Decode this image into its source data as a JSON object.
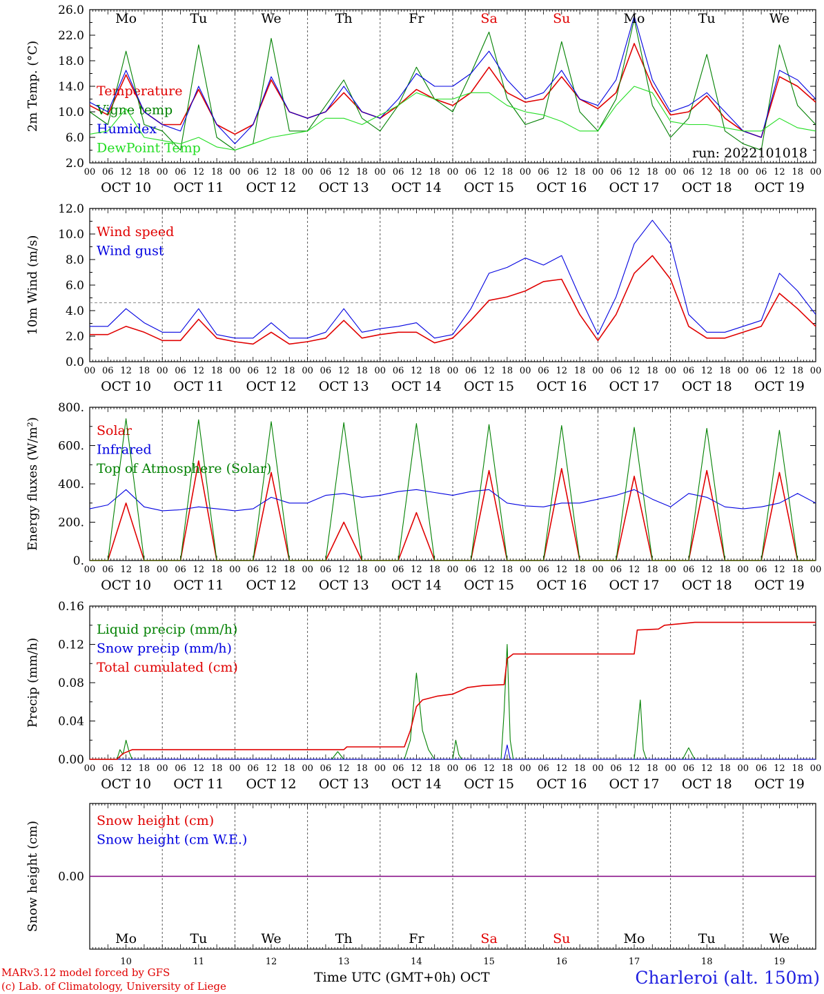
{
  "colors": {
    "red": "#e00000",
    "blue": "#0000e0",
    "green": "#008000",
    "lightgreen": "#22dd22",
    "purple": "#800080",
    "grid": "#555555",
    "weekend": "#e00000"
  },
  "days": [
    "Mo",
    "Tu",
    "We",
    "Th",
    "Fr",
    "Sa",
    "Su",
    "Mo",
    "Tu",
    "We"
  ],
  "weekend_days": [
    5,
    6
  ],
  "dates": [
    "OCT 10",
    "OCT 11",
    "OCT 12",
    "OCT 13",
    "OCT 14",
    "OCT 15",
    "OCT 16",
    "OCT 17",
    "OCT 18",
    "OCT 19"
  ],
  "date_numbers": [
    "10",
    "11",
    "12",
    "13",
    "14",
    "15",
    "16",
    "17",
    "18",
    "19"
  ],
  "hour_ticks": [
    "00",
    "06",
    "12",
    "18"
  ],
  "hour_end": "00",
  "footer": {
    "credit1": "MARv3.12 model forced by GFS",
    "credit2": "(c) Lab. of Climatology, University of Liege",
    "xtitle": "Time UTC (GMT+0h) OCT",
    "station": "Charleroi (alt. 150m)"
  },
  "chart_data": [
    {
      "type": "line",
      "ylabel": "2m Temp. (°C)",
      "ylim": [
        2,
        26
      ],
      "yticks": [
        "2.0",
        "6.0",
        "10.0",
        "14.0",
        "18.0",
        "22.0",
        "26.0"
      ],
      "annotation": "run: 2022101018",
      "x_hours": [
        0,
        6,
        12,
        18,
        24,
        30,
        36,
        42,
        48,
        54,
        60,
        66,
        72,
        78,
        84,
        90,
        96,
        102,
        108,
        114,
        120,
        126,
        132,
        138,
        144,
        150,
        156,
        162,
        168,
        174,
        180,
        186,
        192,
        198,
        204,
        210,
        216,
        222,
        228,
        234,
        240
      ],
      "series": [
        {
          "name": "Temperature",
          "color": "red",
          "values": [
            11,
            9.5,
            15.8,
            10,
            8,
            8,
            13.5,
            8,
            6.5,
            8,
            15,
            10,
            9,
            10,
            13,
            10,
            9,
            11,
            13.5,
            12,
            11,
            13,
            17,
            13,
            11.5,
            12,
            15.5,
            12,
            10.5,
            13,
            20.7,
            14,
            9.5,
            10,
            12.5,
            9,
            7,
            6,
            15.5,
            14,
            11.5
          ]
        },
        {
          "name": "Vigne temp",
          "color": "green",
          "values": [
            10,
            8,
            19.5,
            8,
            7,
            4,
            20.5,
            6,
            4,
            5,
            21.5,
            7,
            7,
            11,
            15,
            9,
            7,
            11,
            17,
            12,
            10,
            16,
            22.5,
            12,
            8,
            9,
            21,
            10,
            7,
            12,
            24.5,
            11,
            6,
            9,
            19,
            7,
            5,
            4,
            20.5,
            11,
            8
          ]
        },
        {
          "name": "Humidex",
          "color": "blue",
          "values": [
            11.5,
            10,
            16.5,
            10,
            8,
            7,
            14,
            8,
            5,
            8,
            15.5,
            10,
            9,
            10,
            14,
            10,
            9,
            12,
            16,
            14,
            14,
            16,
            19.5,
            15,
            12,
            13,
            16.5,
            12,
            11,
            15,
            25,
            15,
            10,
            11,
            13,
            10,
            7,
            6,
            16.5,
            15,
            12
          ]
        },
        {
          "name": "DewPoint Temp",
          "color": "lightgreen",
          "values": [
            6.5,
            7,
            10.5,
            6,
            5.5,
            5,
            6,
            4.5,
            4,
            5,
            6,
            6.5,
            7,
            9,
            9,
            8,
            9.5,
            11,
            13,
            12,
            12,
            13,
            13,
            11,
            10,
            9.5,
            8.5,
            7,
            7,
            11,
            14,
            13,
            8.5,
            8,
            8,
            7.5,
            7,
            7,
            9,
            7.5,
            7
          ]
        }
      ]
    },
    {
      "type": "line",
      "ylabel": "10m Wind (m/s)",
      "ylim": [
        0,
        13
      ],
      "yticks": [
        "0.0",
        "2.0",
        "4.0",
        "6.0",
        "8.0",
        "10.0",
        "12.0"
      ],
      "reference_line": 5,
      "x_hours": [
        0,
        6,
        12,
        18,
        24,
        30,
        36,
        42,
        48,
        54,
        60,
        66,
        72,
        78,
        84,
        90,
        96,
        102,
        108,
        114,
        120,
        126,
        132,
        138,
        144,
        150,
        156,
        162,
        168,
        174,
        180,
        186,
        192,
        198,
        204,
        210,
        216,
        222,
        228,
        234,
        240
      ],
      "series": [
        {
          "name": "Wind speed",
          "color": "red",
          "values": [
            2.3,
            2.3,
            3,
            2.5,
            1.8,
            1.8,
            3.6,
            2,
            1.7,
            1.5,
            2.5,
            1.5,
            1.7,
            2,
            3.5,
            2,
            2.3,
            2.5,
            2.5,
            1.6,
            2,
            3.5,
            5.2,
            5.5,
            6,
            6.8,
            7,
            4,
            1.8,
            4,
            7.5,
            9,
            7,
            3,
            2,
            2,
            2.5,
            3,
            5.8,
            4.5,
            3
          ]
        },
        {
          "name": "Wind gust",
          "color": "blue",
          "values": [
            3,
            3,
            4.5,
            3.3,
            2.5,
            2.5,
            4.5,
            2.3,
            2,
            2,
            3.3,
            2,
            2,
            2.5,
            4.5,
            2.5,
            2.8,
            3,
            3.3,
            2,
            2.3,
            4.5,
            7.5,
            8,
            8.8,
            8.2,
            9,
            5.5,
            2.3,
            5.5,
            10,
            12,
            10,
            4,
            2.5,
            2.5,
            3,
            3.5,
            7.5,
            6,
            4
          ]
        }
      ]
    },
    {
      "type": "line",
      "ylabel": "Energy fluxes (W/m²)",
      "ylim": [
        0,
        800
      ],
      "yticks": [
        "0.",
        "200.",
        "400.",
        "600.",
        "800."
      ],
      "x_hours": [
        0,
        6,
        12,
        18,
        24,
        30,
        36,
        42,
        48,
        54,
        60,
        66,
        72,
        78,
        84,
        90,
        96,
        102,
        108,
        114,
        120,
        126,
        132,
        138,
        144,
        150,
        156,
        162,
        168,
        174,
        180,
        186,
        192,
        198,
        204,
        210,
        216,
        222,
        228,
        234,
        240
      ],
      "series": [
        {
          "name": "Solar",
          "color": "red",
          "values": [
            0,
            0,
            300,
            0,
            0,
            0,
            520,
            0,
            0,
            0,
            460,
            0,
            0,
            0,
            200,
            0,
            0,
            0,
            250,
            0,
            0,
            0,
            470,
            0,
            0,
            0,
            480,
            0,
            0,
            0,
            440,
            0,
            0,
            0,
            470,
            0,
            0,
            0,
            460,
            0,
            0
          ]
        },
        {
          "name": "Infrared",
          "color": "blue",
          "values": [
            270,
            290,
            370,
            280,
            260,
            265,
            280,
            270,
            260,
            270,
            330,
            300,
            300,
            340,
            350,
            330,
            340,
            360,
            370,
            355,
            340,
            360,
            370,
            300,
            285,
            280,
            300,
            300,
            320,
            340,
            370,
            320,
            280,
            350,
            330,
            280,
            270,
            280,
            300,
            350,
            300
          ]
        },
        {
          "name": "Top of Atmosphere (Solar)",
          "color": "green",
          "values": [
            0,
            0,
            740,
            0,
            0,
            0,
            735,
            0,
            0,
            0,
            725,
            0,
            0,
            0,
            720,
            0,
            0,
            0,
            715,
            0,
            0,
            0,
            710,
            0,
            0,
            0,
            705,
            0,
            0,
            0,
            695,
            0,
            0,
            0,
            690,
            0,
            0,
            0,
            680,
            0,
            0
          ]
        }
      ]
    },
    {
      "type": "line",
      "ylabel": "Precip (mm/h)",
      "ylim": [
        0,
        0.16
      ],
      "yticks": [
        "0.00",
        "0.04",
        "0.08",
        "0.12",
        "0.16"
      ],
      "series": [
        {
          "name": "Liquid precip (mm/h)",
          "color": "green",
          "x_hours": [
            0,
            9,
            10,
            11,
            12,
            13,
            14,
            15,
            80,
            82,
            84,
            104,
            106,
            108,
            110,
            112,
            114,
            120,
            121,
            122,
            123,
            136,
            137,
            138,
            139,
            140,
            150,
            180,
            181,
            182,
            183,
            184,
            196,
            198,
            200,
            240
          ],
          "values": [
            0,
            0,
            0.01,
            0.005,
            0.02,
            0.008,
            0,
            0,
            0,
            0.008,
            0,
            0,
            0.02,
            0.09,
            0.03,
            0.01,
            0,
            0,
            0.02,
            0.005,
            0,
            0,
            0.05,
            0.12,
            0.02,
            0,
            0,
            0,
            0.03,
            0.062,
            0.01,
            0,
            0,
            0.012,
            0,
            0
          ]
        },
        {
          "name": "Snow precip (mm/h)",
          "color": "blue",
          "x_hours": [
            0,
            137,
            138,
            139,
            240
          ],
          "values": [
            0,
            0,
            0.015,
            0,
            0
          ]
        },
        {
          "name": "Total cumulated (cm)",
          "color": "red",
          "x_hours": [
            0,
            9,
            11,
            14,
            84,
            85,
            104,
            106,
            108,
            110,
            115,
            120,
            125,
            130,
            137,
            138,
            140,
            175,
            180,
            181,
            188,
            190,
            200,
            240
          ],
          "values": [
            0,
            0,
            0.006,
            0.01,
            0.01,
            0.013,
            0.013,
            0.03,
            0.055,
            0.062,
            0.066,
            0.068,
            0.075,
            0.077,
            0.078,
            0.105,
            0.11,
            0.11,
            0.11,
            0.135,
            0.136,
            0.14,
            0.143,
            0.143
          ]
        }
      ]
    },
    {
      "type": "line",
      "ylabel": "Snow height (cm)",
      "ylim": [
        -1,
        1
      ],
      "yticks": [
        "0.00"
      ],
      "x_hours": [
        0,
        240
      ],
      "series": [
        {
          "name": "Snow height (cm)",
          "color": "red",
          "values": [
            0,
            0
          ]
        },
        {
          "name": "Snow height (cm W.E.)",
          "color": "blue",
          "values": [
            0,
            0
          ]
        }
      ]
    }
  ]
}
